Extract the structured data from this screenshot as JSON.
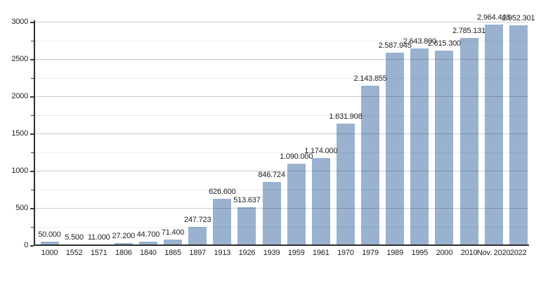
{
  "chart_data": {
    "type": "bar",
    "title": "",
    "xlabel": "",
    "ylabel": "",
    "categories": [
      "1000",
      "1552",
      "1571",
      "1806",
      "1840",
      "1865",
      "1897",
      "1913",
      "1926",
      "1939",
      "1959",
      "1961",
      "1970",
      "1979",
      "1989",
      "1995",
      "2000",
      "2010",
      "Nov. 2020",
      "2022"
    ],
    "values_thousands": [
      50,
      5.5,
      11,
      27.2,
      44.7,
      71.4,
      247.723,
      626.6,
      513.637,
      846.724,
      1090,
      1174,
      1631.908,
      2143.855,
      2587.945,
      2643.8,
      2615.3,
      2785.131,
      2964.448,
      2952.301
    ],
    "value_labels": [
      "50.000",
      "5.500",
      "11.000",
      "27.200",
      "44.700",
      "71.400",
      "247.723",
      "626.600",
      "513.637",
      "846.724",
      "1.090.000",
      "1.174.000",
      "1.631.908",
      "2.143.855",
      "2.587.945",
      "2.643.800",
      "2.615.300",
      "2.785.131",
      "2.964.448",
      "2.952.301"
    ],
    "ylim": [
      0,
      3000
    ],
    "y_major_step": 500,
    "y_minor_step": 250,
    "y_tick_labels": [
      "0",
      "500",
      "1000",
      "1500",
      "2000",
      "2500",
      "3000"
    ],
    "grid": "on",
    "legend_position": "none",
    "colors": {
      "bar": "#9ab2d0",
      "axis": "#2e2e2e",
      "major_grid": "#c6c6c6",
      "minor_grid": "#ececec",
      "text": "#202122"
    }
  }
}
